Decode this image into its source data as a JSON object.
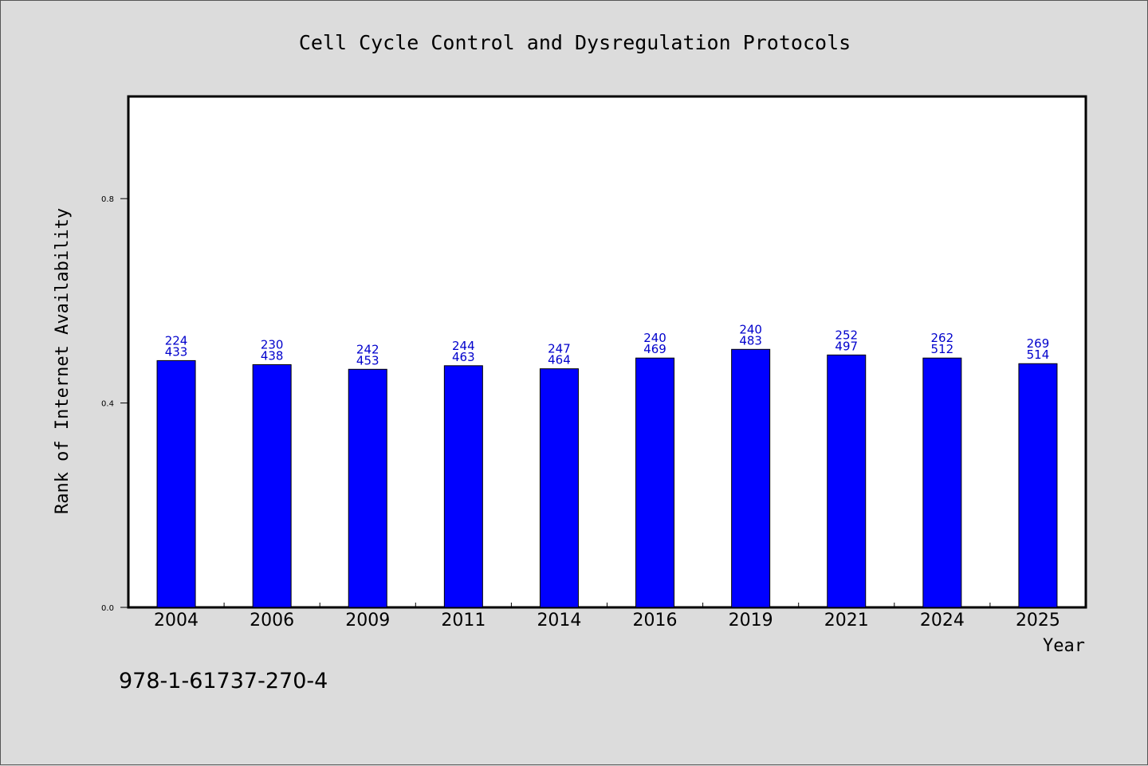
{
  "isbn_text": "978-1-61737-270-4",
  "colors": {
    "background": "#dcdcdc",
    "plot_background": "#ffffff",
    "bar_fill": "#0000ff",
    "bar_label": "#0000cc"
  },
  "chart_data": {
    "type": "bar",
    "title": "Cell Cycle Control and Dysregulation Protocols",
    "xlabel": "Year",
    "ylabel": "Rank of Internet Availability",
    "ylim": [
      0,
      1.0
    ],
    "yticks": [
      0.0,
      0.4,
      0.8
    ],
    "ytick_labels": [
      "0.0",
      "0.4",
      "0.8"
    ],
    "grid": false,
    "categories": [
      "2004",
      "2006",
      "2009",
      "2011",
      "2014",
      "2016",
      "2019",
      "2021",
      "2024",
      "2025"
    ],
    "values": [
      0.483,
      0.475,
      0.466,
      0.473,
      0.467,
      0.488,
      0.505,
      0.494,
      0.488,
      0.477
    ],
    "annotations": [
      [
        "224",
        "433"
      ],
      [
        "230",
        "438"
      ],
      [
        "242",
        "453"
      ],
      [
        "244",
        "463"
      ],
      [
        "247",
        "464"
      ],
      [
        "240",
        "469"
      ],
      [
        "240",
        "483"
      ],
      [
        "252",
        "497"
      ],
      [
        "262",
        "512"
      ],
      [
        "269",
        "514"
      ]
    ]
  }
}
